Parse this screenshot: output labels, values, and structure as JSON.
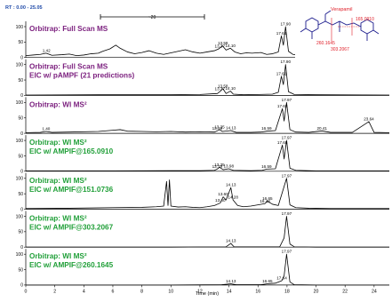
{
  "header": {
    "rt_label": "RT : 0.00 - 25.05",
    "span_label": "~20"
  },
  "compound": {
    "name": "Verapamil",
    "fragments": [
      "165.0910",
      "260.1645",
      "303.2067"
    ]
  },
  "chart_data": {
    "type": "line",
    "xlabel": "Time (min)",
    "xlim": [
      0,
      25.05
    ],
    "x_ticks": [
      0,
      2,
      4,
      6,
      8,
      10,
      12,
      14,
      16,
      18,
      20,
      22,
      24
    ],
    "y_ticks": [
      0,
      50,
      100
    ],
    "ylim": [
      0,
      100
    ],
    "panels": [
      {
        "title_lines": [
          "Orbitrap: Full Scan MS"
        ],
        "color": "#7b1f7e",
        "trace": [
          [
            0,
            6
          ],
          [
            0.5,
            8
          ],
          [
            1.0,
            10
          ],
          [
            1.4,
            14
          ],
          [
            1.8,
            7
          ],
          [
            2.5,
            9
          ],
          [
            3.0,
            11
          ],
          [
            3.5,
            6
          ],
          [
            4.0,
            8
          ],
          [
            4.5,
            12
          ],
          [
            5.0,
            14
          ],
          [
            5.3,
            20
          ],
          [
            5.8,
            28
          ],
          [
            6.2,
            40
          ],
          [
            6.5,
            30
          ],
          [
            7.0,
            18
          ],
          [
            7.5,
            12
          ],
          [
            8.0,
            16
          ],
          [
            8.5,
            22
          ],
          [
            9.0,
            14
          ],
          [
            9.5,
            10
          ],
          [
            10.0,
            15
          ],
          [
            10.5,
            20
          ],
          [
            11.0,
            25
          ],
          [
            11.5,
            18
          ],
          [
            12.0,
            14
          ],
          [
            12.5,
            18
          ],
          [
            13.0,
            22
          ],
          [
            13.3,
            28
          ],
          [
            13.55,
            38
          ],
          [
            13.8,
            24
          ],
          [
            14.1,
            30
          ],
          [
            14.4,
            18
          ],
          [
            14.8,
            12
          ],
          [
            15.2,
            15
          ],
          [
            15.6,
            14
          ],
          [
            16.2,
            16
          ],
          [
            16.6,
            10
          ],
          [
            17.0,
            12
          ],
          [
            17.4,
            18
          ],
          [
            17.61,
            70
          ],
          [
            17.75,
            40
          ],
          [
            17.9,
            100
          ],
          [
            18.1,
            20
          ],
          [
            18.4,
            10
          ],
          [
            18.8,
            8
          ],
          [
            19.5,
            9
          ],
          [
            20.5,
            7
          ],
          [
            21.5,
            6
          ],
          [
            22.5,
            5
          ],
          [
            23.66,
            9
          ],
          [
            24.5,
            4
          ],
          [
            25.05,
            3
          ]
        ],
        "labels": [
          {
            "x": 1.42,
            "text": "1.42",
            "y": 14
          },
          {
            "x": 13.37,
            "text": "13.37",
            "y": 28
          },
          {
            "x": 13.58,
            "text": "13.58",
            "y": 38
          },
          {
            "x": 14.1,
            "text": "14.10",
            "y": 30
          },
          {
            "x": 17.61,
            "text": "17.61",
            "y": 70
          },
          {
            "x": 17.9,
            "text": "17.90",
            "y": 100
          },
          {
            "x": 23.66,
            "text": "23.66",
            "y": 9
          }
        ]
      },
      {
        "title_lines": [
          "Orbitrap: Full Scan MS",
          "EIC w/ pAMPF (21 predictions)"
        ],
        "color": "#7b1f7e",
        "trace": [
          [
            0,
            1
          ],
          [
            5,
            2
          ],
          [
            10,
            2
          ],
          [
            12,
            3
          ],
          [
            13.2,
            6
          ],
          [
            13.37,
            12
          ],
          [
            13.58,
            22
          ],
          [
            13.8,
            6
          ],
          [
            14.1,
            14
          ],
          [
            14.3,
            4
          ],
          [
            15,
            2
          ],
          [
            16,
            3
          ],
          [
            17.0,
            4
          ],
          [
            17.4,
            10
          ],
          [
            17.61,
            62
          ],
          [
            17.75,
            35
          ],
          [
            17.9,
            100
          ],
          [
            18.1,
            12
          ],
          [
            18.5,
            3
          ],
          [
            20,
            2
          ],
          [
            25.05,
            1
          ]
        ],
        "labels": [
          {
            "x": 13.37,
            "text": "13.37",
            "y": 12
          },
          {
            "x": 13.58,
            "text": "13.58",
            "y": 22
          },
          {
            "x": 14.1,
            "text": "14.10",
            "y": 14
          },
          {
            "x": 17.61,
            "text": "17.61",
            "y": 62
          },
          {
            "x": 17.9,
            "text": "17.90",
            "y": 100
          }
        ]
      },
      {
        "title_lines": [
          "Orbitrap: WI MS²"
        ],
        "color": "#7b1f7e",
        "trace": [
          [
            0,
            2
          ],
          [
            1.0,
            3
          ],
          [
            1.4,
            6
          ],
          [
            1.8,
            3
          ],
          [
            3,
            4
          ],
          [
            5,
            6
          ],
          [
            6,
            10
          ],
          [
            6.5,
            12
          ],
          [
            7,
            7
          ],
          [
            8,
            6
          ],
          [
            9,
            5
          ],
          [
            10,
            6
          ],
          [
            11,
            4
          ],
          [
            12,
            5
          ],
          [
            13.0,
            4
          ],
          [
            13.19,
            8
          ],
          [
            13.35,
            12
          ],
          [
            13.55,
            6
          ],
          [
            14.13,
            9
          ],
          [
            14.5,
            3
          ],
          [
            15.5,
            3
          ],
          [
            16.2,
            4
          ],
          [
            16.59,
            7
          ],
          [
            17.2,
            9
          ],
          [
            17.68,
            80
          ],
          [
            17.8,
            40
          ],
          [
            17.97,
            100
          ],
          [
            18.2,
            12
          ],
          [
            18.6,
            4
          ],
          [
            19.5,
            3
          ],
          [
            20.41,
            8
          ],
          [
            21,
            3
          ],
          [
            22.5,
            3
          ],
          [
            23.64,
            38
          ],
          [
            24,
            3
          ],
          [
            25.05,
            2
          ]
        ],
        "labels": [
          {
            "x": 1.4,
            "text": "1.40",
            "y": 6
          },
          {
            "x": 13.19,
            "text": "13.19",
            "y": 8
          },
          {
            "x": 13.35,
            "text": "13.35",
            "y": 12
          },
          {
            "x": 14.13,
            "text": "14.13",
            "y": 9
          },
          {
            "x": 16.59,
            "text": "16.59",
            "y": 7
          },
          {
            "x": 17.68,
            "text": "17.68",
            "y": 80
          },
          {
            "x": 17.97,
            "text": "17.97",
            "y": 100
          },
          {
            "x": 20.41,
            "text": "20.41",
            "y": 8
          },
          {
            "x": 23.64,
            "text": "23.64",
            "y": 38
          }
        ]
      },
      {
        "title_lines": [
          "Orbitrap: WI MS²",
          "EIC w/ AMPIF@165.0910"
        ],
        "color": "#22a03a",
        "trace": [
          [
            0,
            1
          ],
          [
            5,
            1
          ],
          [
            10,
            2
          ],
          [
            12,
            2
          ],
          [
            13.0,
            3
          ],
          [
            13.19,
            7
          ],
          [
            13.35,
            13
          ],
          [
            13.6,
            5
          ],
          [
            13.98,
            8
          ],
          [
            14.3,
            3
          ],
          [
            15.5,
            2
          ],
          [
            16.3,
            3
          ],
          [
            16.59,
            7
          ],
          [
            17.2,
            8
          ],
          [
            17.68,
            85
          ],
          [
            17.8,
            40
          ],
          [
            17.97,
            100
          ],
          [
            18.2,
            10
          ],
          [
            18.6,
            3
          ],
          [
            20,
            1
          ],
          [
            25.05,
            1
          ]
        ],
        "labels": [
          {
            "x": 13.19,
            "text": "13.19",
            "y": 7
          },
          {
            "x": 13.35,
            "text": "13.35",
            "y": 13
          },
          {
            "x": 13.98,
            "text": "13.98",
            "y": 8
          },
          {
            "x": 16.59,
            "text": "16.59",
            "y": 7
          },
          {
            "x": 17.68,
            "text": "17.68",
            "y": 85
          },
          {
            "x": 17.97,
            "text": "17.97",
            "y": 100
          }
        ]
      },
      {
        "title_lines": [
          "Orbitrap: WI MS²",
          "EIC w/ AMPIF@151.0736"
        ],
        "color": "#22a03a",
        "trace": [
          [
            0,
            2
          ],
          [
            3,
            3
          ],
          [
            6,
            5
          ],
          [
            8,
            6
          ],
          [
            9.0,
            8
          ],
          [
            9.5,
            10
          ],
          [
            9.7,
            90
          ],
          [
            9.8,
            12
          ],
          [
            9.9,
            95
          ],
          [
            10.0,
            10
          ],
          [
            10.5,
            7
          ],
          [
            11,
            8
          ],
          [
            11.5,
            6
          ],
          [
            12,
            5
          ],
          [
            12.5,
            8
          ],
          [
            13.0,
            12
          ],
          [
            13.4,
            20
          ],
          [
            13.6,
            40
          ],
          [
            13.8,
            30
          ],
          [
            14.13,
            70
          ],
          [
            14.28,
            30
          ],
          [
            14.6,
            12
          ],
          [
            15,
            8
          ],
          [
            15.5,
            10
          ],
          [
            16.0,
            14
          ],
          [
            16.48,
            18
          ],
          [
            16.65,
            26
          ],
          [
            17.0,
            16
          ],
          [
            17.4,
            12
          ],
          [
            17.97,
            100
          ],
          [
            18.2,
            14
          ],
          [
            18.6,
            5
          ],
          [
            19.5,
            3
          ],
          [
            21,
            2
          ],
          [
            25.05,
            2
          ]
        ],
        "labels": [
          {
            "x": 13.4,
            "text": "13.40",
            "y": 20
          },
          {
            "x": 13.6,
            "text": "13.60",
            "y": 40
          },
          {
            "x": 14.13,
            "text": "14.13",
            "y": 70
          },
          {
            "x": 14.28,
            "text": "14.28",
            "y": 30
          },
          {
            "x": 16.48,
            "text": "16.48",
            "y": 18
          },
          {
            "x": 16.65,
            "text": "16.65",
            "y": 26
          },
          {
            "x": 17.97,
            "text": "17.97",
            "y": 100
          }
        ]
      },
      {
        "title_lines": [
          "Orbitrap: WI MS²",
          "EIC w/ AMPIF@303.2067"
        ],
        "color": "#22a03a",
        "trace": [
          [
            0,
            0
          ],
          [
            10,
            0
          ],
          [
            13.8,
            1
          ],
          [
            14.13,
            12
          ],
          [
            14.35,
            1
          ],
          [
            17.5,
            1
          ],
          [
            17.8,
            30
          ],
          [
            17.97,
            100
          ],
          [
            18.2,
            10
          ],
          [
            18.5,
            1
          ],
          [
            20,
            0
          ],
          [
            25.05,
            0
          ]
        ],
        "labels": [
          {
            "x": 14.13,
            "text": "14.13",
            "y": 12
          },
          {
            "x": 17.97,
            "text": "17.97",
            "y": 100
          }
        ]
      },
      {
        "title_lines": [
          "Orbitrap: WI MS²",
          "EIC w/ AMPIF@260.1645"
        ],
        "color": "#22a03a",
        "trace": [
          [
            0,
            0
          ],
          [
            10,
            0
          ],
          [
            13.5,
            1
          ],
          [
            14.13,
            4
          ],
          [
            14.5,
            1
          ],
          [
            16.2,
            1
          ],
          [
            16.65,
            4
          ],
          [
            17.2,
            6
          ],
          [
            17.64,
            14
          ],
          [
            17.8,
            30
          ],
          [
            17.97,
            100
          ],
          [
            18.2,
            10
          ],
          [
            18.5,
            1
          ],
          [
            20,
            0
          ],
          [
            25.05,
            0
          ]
        ],
        "labels": [
          {
            "x": 14.13,
            "text": "14.13",
            "y": 4
          },
          {
            "x": 16.65,
            "text": "16.65",
            "y": 4
          },
          {
            "x": 17.64,
            "text": "17.64",
            "y": 14
          },
          {
            "x": 17.97,
            "text": "17.97",
            "y": 100
          }
        ]
      }
    ]
  }
}
